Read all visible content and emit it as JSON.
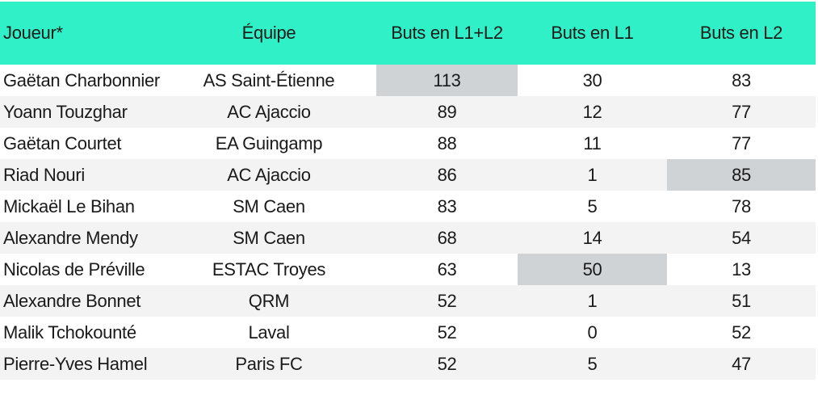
{
  "table": {
    "headers": {
      "player": "Joueur*",
      "team": "Équipe",
      "total": "Buts en L1+L2",
      "l1": "Buts en L1",
      "l2": "Buts en L2"
    },
    "rows": [
      {
        "player": "Gaëtan Charbonnier",
        "team": "AS Saint-Étienne",
        "total": "113",
        "l1": "30",
        "l2": "83",
        "highlight": "total"
      },
      {
        "player": "Yoann Touzghar",
        "team": "AC Ajaccio",
        "total": "89",
        "l1": "12",
        "l2": "77",
        "highlight": ""
      },
      {
        "player": "Gaëtan Courtet",
        "team": "EA Guingamp",
        "total": "88",
        "l1": "11",
        "l2": "77",
        "highlight": ""
      },
      {
        "player": "Riad Nouri",
        "team": "AC Ajaccio",
        "total": "86",
        "l1": "1",
        "l2": "85",
        "highlight": "l2"
      },
      {
        "player": "Mickaël Le Bihan",
        "team": "SM Caen",
        "total": "83",
        "l1": "5",
        "l2": "78",
        "highlight": ""
      },
      {
        "player": "Alexandre Mendy",
        "team": "SM Caen",
        "total": "68",
        "l1": "14",
        "l2": "54",
        "highlight": ""
      },
      {
        "player": "Nicolas de Préville",
        "team": "ESTAC Troyes",
        "total": "63",
        "l1": "50",
        "l2": "13",
        "highlight": "l1"
      },
      {
        "player": "Alexandre Bonnet",
        "team": "QRM",
        "total": "52",
        "l1": "1",
        "l2": "51",
        "highlight": ""
      },
      {
        "player": "Malik Tchokounté",
        "team": "Laval",
        "total": "52",
        "l1": "0",
        "l2": "52",
        "highlight": ""
      },
      {
        "player": "Pierre-Yves Hamel",
        "team": "Paris FC",
        "total": "52",
        "l1": "5",
        "l2": "47",
        "highlight": ""
      }
    ]
  },
  "colors": {
    "header_bg": "#2ff0c6",
    "highlight_bg": "#cfd3d6",
    "alt_row_bg": "#f3f3f3"
  }
}
